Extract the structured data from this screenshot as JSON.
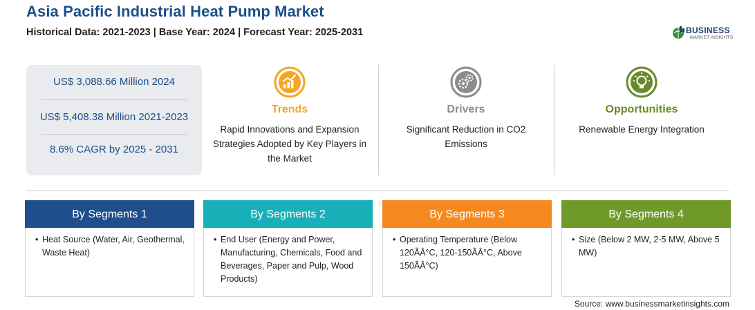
{
  "header": {
    "title": "Asia Pacific Industrial Heat Pump Market",
    "subtitle": "Historical Data: 2021-2023 | Base Year: 2024 | Forecast Year: 2025-2031"
  },
  "logo": {
    "word": "BUSINESS",
    "sub": "MARKET INSIGHTS",
    "color": "#1f3d6b",
    "accent": "#3a8a3f"
  },
  "stats": [
    "US$ 3,088.66 Million 2024",
    "US$ 5,408.38 Million 2021-2023",
    "8.6% CAGR by 2025 - 2031"
  ],
  "columns": [
    {
      "heading": "Trends",
      "text": "Rapid Innovations and Expansion Strategies Adopted by Key Players in the Market",
      "color": "#f5a623",
      "icon": "chart-growth-icon"
    },
    {
      "heading": "Drivers",
      "text": "Significant Reduction in CO2 Emissions",
      "color": "#8c8c8c",
      "icon": "gears-icon"
    },
    {
      "heading": "Opportunities",
      "text": "Renewable Energy Integration",
      "color": "#6a8a2a",
      "icon": "lightbulb-icon"
    }
  ],
  "segments": [
    {
      "title": "By Segments 1",
      "color": "#1f4e8c",
      "items": [
        "Heat Source (Water, Air, Geothermal, Waste Heat)"
      ]
    },
    {
      "title": "By Segments 2",
      "color": "#17b0b8",
      "items": [
        "End User (Energy and Power, Manufacturing, Chemicals, Food and Beverages, Paper and Pulp, Wood Products)"
      ]
    },
    {
      "title": "By Segments 3",
      "color": "#f5891f",
      "items": [
        "Operating Temperature (Below 120ÃÂ°C, 120-150ÃÂ°C, Above 150ÃÂ°C)"
      ]
    },
    {
      "title": "By Segments 4",
      "color": "#6f9a2a",
      "items": [
        "Size (Below 2 MW, 2-5 MW, Above 5 MW)"
      ]
    }
  ],
  "source": "Source: www.businessmarketinsights.com"
}
